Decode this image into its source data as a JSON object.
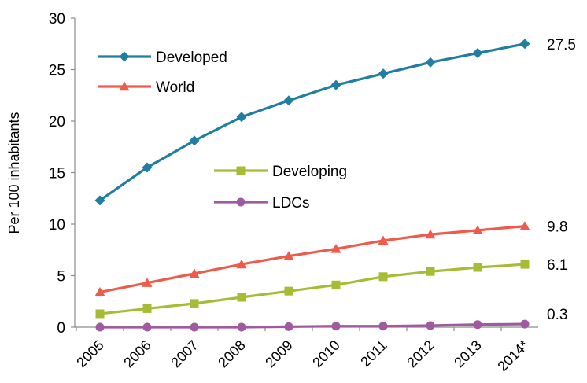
{
  "chart_data": {
    "type": "line",
    "title": "",
    "xlabel": "",
    "ylabel": "Per 100 inhabitants",
    "ylim": [
      0,
      30
    ],
    "yticks": [
      0,
      5,
      10,
      15,
      20,
      25,
      30
    ],
    "grid": false,
    "categories": [
      "2005",
      "2006",
      "2007",
      "2008",
      "2009",
      "2010",
      "2011",
      "2012",
      "2013",
      "2014*"
    ],
    "series": [
      {
        "name": "Developed",
        "color": "#1f7ea1",
        "marker": "diamond",
        "values": [
          12.3,
          15.5,
          18.1,
          20.4,
          22.0,
          23.5,
          24.6,
          25.7,
          26.6,
          27.5
        ],
        "end_label": "27.5"
      },
      {
        "name": "World",
        "color": "#f05a4a",
        "marker": "triangle",
        "values": [
          3.4,
          4.3,
          5.2,
          6.1,
          6.9,
          7.6,
          8.4,
          9.0,
          9.4,
          9.8
        ],
        "end_label": "9.8"
      },
      {
        "name": "Developing",
        "color": "#a4bd34",
        "marker": "square",
        "values": [
          1.3,
          1.8,
          2.3,
          2.9,
          3.5,
          4.1,
          4.9,
          5.4,
          5.8,
          6.1
        ],
        "end_label": "6.1"
      },
      {
        "name": "LDCs",
        "color": "#a05aa0",
        "marker": "circle",
        "values": [
          0.0,
          0.0,
          0.0,
          0.0,
          0.05,
          0.1,
          0.1,
          0.15,
          0.25,
          0.3
        ],
        "end_label": "0.3"
      }
    ],
    "legend": [
      {
        "series": "Developed",
        "placement": "top-left"
      },
      {
        "series": "World",
        "placement": "top-left"
      },
      {
        "series": "Developing",
        "placement": "center"
      },
      {
        "series": "LDCs",
        "placement": "center"
      }
    ]
  }
}
